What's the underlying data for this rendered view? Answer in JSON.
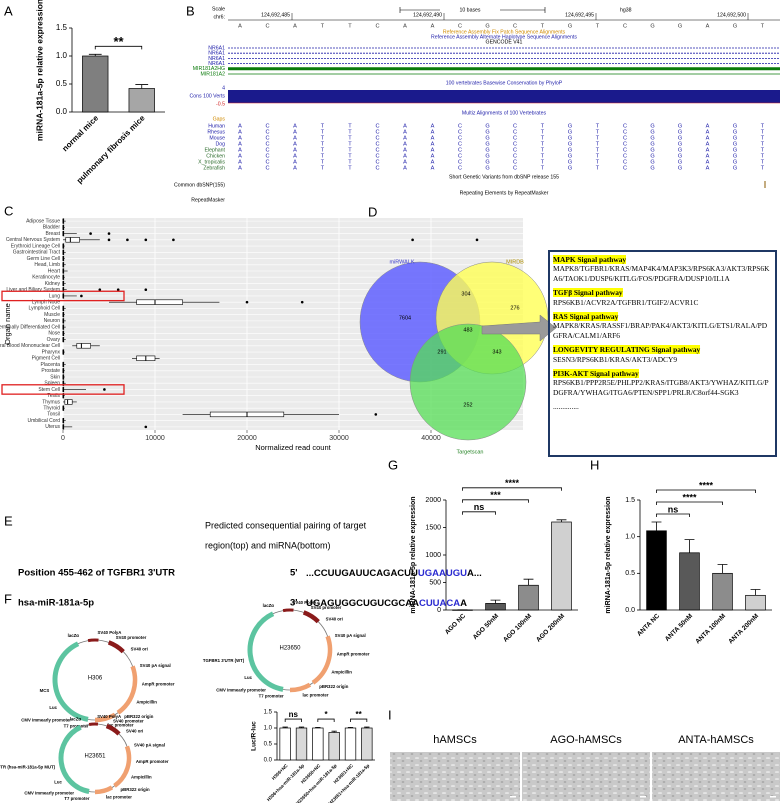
{
  "panels": [
    "A",
    "B",
    "C",
    "D",
    "E",
    "F",
    "G",
    "H",
    "I"
  ],
  "chart_data": [
    {
      "type": "bar",
      "ylabel": "miRNA-181a-5p relative expression",
      "categories": [
        "normal mice",
        "pulmonary fibrosis mice"
      ],
      "values": [
        1.0,
        0.42
      ],
      "errors": [
        0.03,
        0.07
      ],
      "colors": [
        "#7f7f7f",
        "#a6a6a6"
      ],
      "ylim": [
        0,
        1.5
      ],
      "yticks": [
        {
          "value": 0,
          "label": "0.0"
        },
        0.5,
        {
          "value": 1,
          "label": "1.0"
        },
        1.5
      ],
      "annotations": [
        "**"
      ]
    },
    {
      "type": "box",
      "xlabel": "Normalized read count",
      "ylabel": "Organ name",
      "categories": [
        "Adipose Tissue",
        "Bladder",
        "Breast",
        "Central Nervous System",
        "Erythroid Lineage Cell",
        "Gastrointestinal Tract",
        "Germ Line Cell",
        "Head, Limb",
        "Heart",
        "Keratinocyte",
        "Kidney",
        "Liver and Biliary System",
        "Lung",
        "Lymph Node",
        "Lymphoid Cell",
        "Muscle",
        "Neuron",
        "Non-terminally Differentiated Cell",
        "Nose",
        "Ovary",
        "Peripheral Blood Mononuclear Cell",
        "Pharynx",
        "Pigment Cell",
        "Placenta",
        "Prostate",
        "Skin",
        "Spleen",
        "Stem Cell",
        "Testis",
        "Thymus",
        "Thyroid",
        "Tonsil",
        "Umbilical Cord",
        "Uterus"
      ],
      "q1": [
        0,
        0,
        0,
        300,
        0,
        0,
        0,
        0,
        0,
        0,
        0,
        0,
        0,
        8000,
        0,
        0,
        0,
        0,
        0,
        0,
        1500,
        0,
        8000,
        0,
        0,
        0,
        0,
        0,
        0,
        200,
        0,
        16000,
        0,
        0
      ],
      "median": [
        0,
        0,
        0,
        800,
        0,
        0,
        0,
        0,
        0,
        0,
        0,
        0,
        0,
        10000,
        0,
        0,
        0,
        0,
        0,
        0,
        2000,
        0,
        9000,
        0,
        0,
        0,
        0,
        0,
        0,
        500,
        0,
        20000,
        0,
        0
      ],
      "q3": [
        0,
        0,
        0,
        1800,
        0,
        0,
        0,
        0,
        0,
        0,
        0,
        0,
        0,
        13000,
        0,
        0,
        0,
        0,
        0,
        0,
        3000,
        0,
        10000,
        0,
        0,
        0,
        0,
        0,
        0,
        1000,
        0,
        24000,
        0,
        0
      ],
      "whisker_low": [
        0,
        0,
        0,
        0,
        0,
        0,
        0,
        0,
        0,
        0,
        0,
        0,
        0,
        5000,
        0,
        0,
        0,
        0,
        0,
        0,
        1000,
        0,
        7500,
        0,
        0,
        0,
        0,
        0,
        0,
        0,
        0,
        13000,
        0,
        0
      ],
      "whisker_high": [
        300,
        200,
        1500,
        4000,
        200,
        300,
        200,
        300,
        500,
        200,
        300,
        400,
        1500,
        17000,
        300,
        200,
        300,
        300,
        200,
        300,
        4000,
        200,
        10500,
        300,
        200,
        200,
        300,
        2500,
        200,
        1500,
        200,
        30000,
        300,
        1000
      ],
      "outliers": [
        [],
        [],
        [
          3000,
          5000
        ],
        [
          5000,
          7000,
          9000,
          12000,
          38000,
          45000
        ],
        [],
        [],
        [],
        [],
        [],
        [],
        [],
        [
          4000,
          6000,
          9000
        ],
        [
          2000
        ],
        [
          20000,
          26000
        ],
        [],
        [],
        [],
        [],
        [],
        [],
        [],
        [],
        [],
        [],
        [],
        [],
        [],
        [
          4500
        ],
        [],
        [],
        [],
        [
          34000
        ],
        [],
        [
          9000
        ]
      ],
      "xlim": [
        0,
        50000
      ],
      "xticks": [
        0,
        10000,
        20000,
        30000,
        40000
      ],
      "grid": true,
      "highlight": [
        12,
        27
      ],
      "highlight_color": "#e02020"
    },
    {
      "type": "bar",
      "ylabel": "miRNA-181a-5p relative expression",
      "categories": [
        "AGO NC",
        "AGO 50nM",
        "AGO 100nM",
        "AGO 200nM"
      ],
      "values": [
        2,
        120,
        450,
        1600
      ],
      "errors": [
        2,
        60,
        110,
        40
      ],
      "colors": [
        "#000000",
        "#595959",
        "#8c8c8c",
        "#d0d0d0"
      ],
      "ylim": [
        0,
        2000
      ],
      "yticks": [
        0,
        500,
        1000,
        1500,
        2000
      ],
      "annotations": [
        "ns",
        "***",
        "****"
      ]
    },
    {
      "type": "bar",
      "ylabel": "miRNA-181a-5p relative expression",
      "categories": [
        "ANTA NC",
        "ANTA 50nM",
        "ANTA 100nM",
        "ANTA 200nM"
      ],
      "values": [
        1.08,
        0.78,
        0.5,
        0.2
      ],
      "errors": [
        0.12,
        0.18,
        0.12,
        0.08
      ],
      "colors": [
        "#000000",
        "#595959",
        "#8c8c8c",
        "#d0d0d0"
      ],
      "ylim": [
        0,
        1.5
      ],
      "yticks": [
        {
          "value": 0,
          "label": "0.0"
        },
        0.5,
        {
          "value": 1,
          "label": "1.0"
        },
        1.5
      ],
      "annotations": [
        "ns",
        "****",
        "****"
      ]
    },
    {
      "type": "bar",
      "ylabel": "Luc/R-luc",
      "categories": [
        "H306+NC",
        "H306+hsa-miR-181a-5p",
        "H23650+NC",
        "H23650+hsa-miR-181a-5p",
        "H23651+NC",
        "H23651+hsa-miR-181a-5p"
      ],
      "values": [
        1.0,
        1.0,
        1.0,
        0.86,
        1.0,
        1.0
      ],
      "errors": [
        0.03,
        0.03,
        0.02,
        0.04,
        0.02,
        0.03
      ],
      "colors": [
        "#ffffff",
        "#d9d9d9",
        "#ffffff",
        "#d9d9d9",
        "#ffffff",
        "#d9d9d9"
      ],
      "ylim": [
        0,
        1.5
      ],
      "yticks": [
        {
          "value": 0,
          "label": "0.0"
        },
        0.5,
        {
          "value": 1,
          "label": "1.0"
        },
        1.5
      ],
      "annotations": [
        "ns",
        "*",
        "**"
      ]
    }
  ],
  "genome_browser": {
    "scale_label": "Scale",
    "chrom": "chr6:",
    "ruler": "10 bases",
    "assembly": "hg38",
    "positions": [
      "124,692,485",
      "124,692,490",
      "124,692,495",
      "124,692,500"
    ],
    "sequence": [
      "A",
      "C",
      "A",
      "T",
      "T",
      "C",
      "A",
      "A",
      "C",
      "G",
      "C",
      "T",
      "G",
      "T",
      "C",
      "G",
      "G",
      "A",
      "G",
      "T"
    ],
    "fix_patch": "Reference Assembly Fix Patch Sequence Alignments",
    "alt_haplotype": "Reference Assembly Alternate Haplotype Sequence Alignments",
    "gencode": "GENCODE V41",
    "genes": [
      "NR6A1",
      "NR6A1",
      "NR6A1",
      "NR6A1",
      "MIR181A2HG",
      "MIR181A2"
    ],
    "phylop_title": "100 vertebrates Basewise Conservation by PhyloP",
    "cons_label": "Cons 100 Verts",
    "cons_max": "4",
    "cons_min": "-0.5",
    "multiz_title": "Multiz Alignments of 100 Vertebrates",
    "gaps": "Gaps",
    "species": [
      "Human",
      "Rhesus",
      "Mouse",
      "Dog",
      "Elephant",
      "Chicken",
      "X_tropicalis",
      "Zebrafish"
    ],
    "dbsnp_title": "Short Genetic Variants from dbSNP release 155",
    "dbsnp_label": "Common dbSNP(155)",
    "rmsk_title": "Repeating Elements by RepeatMasker",
    "rmsk_label": "RepeatMasker"
  },
  "venn": {
    "sets": [
      "miRWALK",
      "MIRDB",
      "Targetscan"
    ],
    "regions": [
      7604,
      304,
      276,
      483,
      291,
      343,
      252
    ]
  },
  "pathways": [
    {
      "name": "MAPK  Signal pathway",
      "genes": "MAPK8/TGFBR1/KRAS/MAP4K4/MAP3K3/RPS6KA3/AKT3/RPS6KA6/TAOK1/DUSP6/KITLG/FOS/PDGFRA/DUSP10/IL1A"
    },
    {
      "name": "TGFβ  Signal pathway",
      "genes": "RPS6KB1/ACVR2A/TGFBR1/TGIF2/ACVR1C"
    },
    {
      "name": "RAS  Signal pathway",
      "genes": "MAPK8/KRAS/RASSF1/BRAP/PAK4/AKT3/KITLG/ETS1/RALA/PDGFRA/CALM1/ARF6"
    },
    {
      "name": "LONGEVITY REGULATING Signal pathway",
      "genes": "SESN3/RPS6KB1/KRAS/AKT3/ADCY9"
    },
    {
      "name": "PI3K-AKT  Signal pathway",
      "genes": "RPS6KB1/PPP2R5E/PHLPP2/KRAS/ITGB8/AKT3/YWHAZ/KITLG/PDGFRA/YWHAG/ITGA6/PTEN/SPP1/PRLR/C8orf44-SGK3"
    }
  ],
  "pathways_more": "..............",
  "pairing": {
    "caption_1": "Predicted consequential pairing of target",
    "caption_2": "region(top) and miRNA(bottom)",
    "target_label": "Position 455-462 of  TGFBR1 3'UTR",
    "target_end": "5'",
    "target_seq": "...CCUUGAUUCAGACUU",
    "target_seed": "UGAAUGU",
    "target_tail": "A...",
    "mirna_label": "hsa-miR-181a-5p",
    "mirna_end": "3'",
    "mirna_seq": "UGAGUGGCUGUCGCAA",
    "mirna_seed": "CUUACA",
    "mirna_tail": "A"
  },
  "plasmids": [
    {
      "name": "H306",
      "features": [
        "lacZα",
        "SV40 PolyA",
        "SV40 promoter",
        "SV40 ori",
        "SV40 pA signal",
        "AmpR promoter",
        "Ampicillin",
        "pBR322 origin",
        "lac promoter",
        "T7 promoter",
        "CMV immearly promoter",
        "Luc",
        "MCS"
      ]
    },
    {
      "name": "H23650",
      "features": [
        "lacZα",
        "SV40 PolyA",
        "SV40 promoter",
        "SV40 ori",
        "SV40 pA signal",
        "AmpR promoter",
        "Ampicillin",
        "pBR322 origin",
        "lac promoter",
        "T7 promoter",
        "CMV immearly promoter",
        "Luc",
        "TGFBR1 3'UTR (WT)"
      ]
    },
    {
      "name": "H23651",
      "features": [
        "lacZα",
        "SV40 PolyA",
        "SV40 promoter",
        "SV40 ori",
        "SV40 pA signal",
        "AmpR promoter",
        "Ampicillin",
        "pBR322 origin",
        "lac promoter",
        "T7 promoter",
        "CMV immearly promoter",
        "Luc",
        "TGFBR1 3'UTR (hsa-miR-181a-5p MUT)"
      ]
    }
  ],
  "images": [
    "hAMSCs",
    "AGO-hAMSCs",
    "ANTA-hAMSCs"
  ]
}
